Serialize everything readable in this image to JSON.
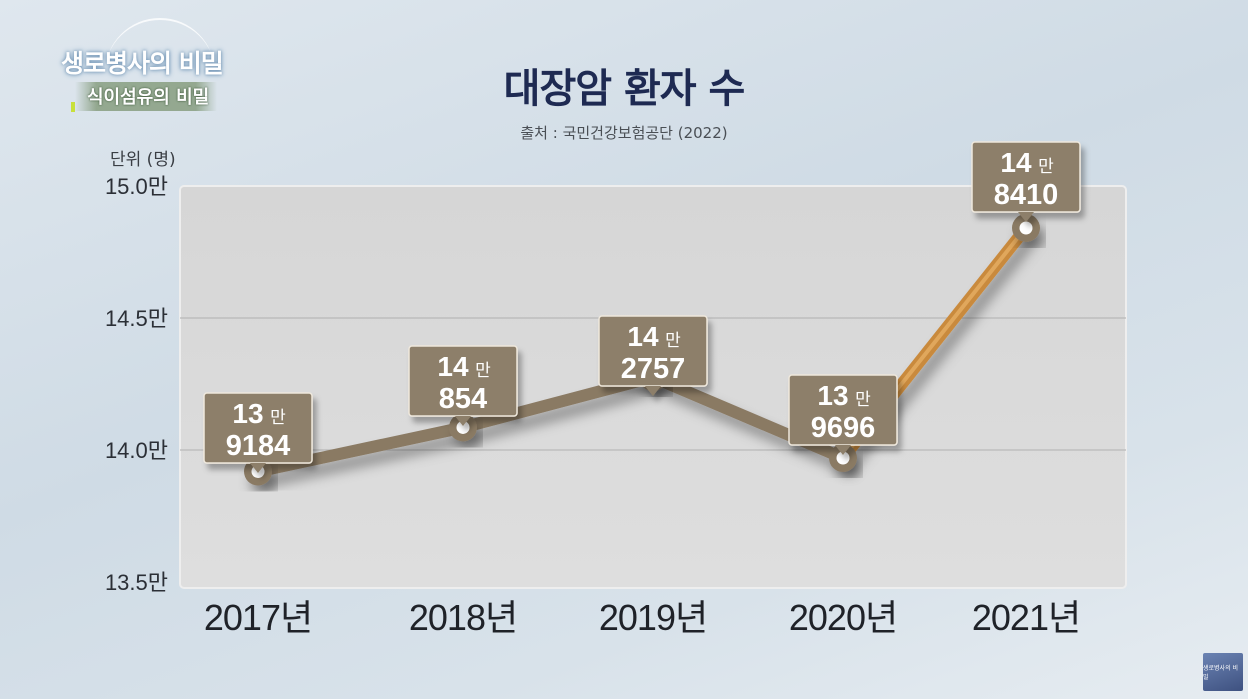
{
  "logo": {
    "title": "생로병사의 비밀",
    "subtitle": "식이섬유의 비밀"
  },
  "title": "대장암 환자 수",
  "source": "출처 : 국민건강보험공단 (2022)",
  "unit": "단위 (명)",
  "corner_logo": "생로병사의 비밀",
  "colors": {
    "line": "#8a7a64",
    "highlight_line": "#c98a3e",
    "label_box": "#8d7f6a",
    "plot_bg": "#d9d9d9",
    "title": "#1e2a52"
  },
  "chart_data": {
    "type": "line",
    "title": "대장암 환자 수",
    "ylabel": "단위 (명)",
    "categories": [
      "2017년",
      "2018년",
      "2019년",
      "2020년",
      "2021년"
    ],
    "values": [
      139184,
      140854,
      142757,
      139696,
      148410
    ],
    "point_labels": [
      {
        "top": "13만",
        "bottom": "9184"
      },
      {
        "top": "14만",
        "bottom": "854"
      },
      {
        "top": "14만",
        "bottom": "2757"
      },
      {
        "top": "13만",
        "bottom": "9696"
      },
      {
        "top": "14만",
        "bottom": "8410"
      }
    ],
    "y_ticks": [
      {
        "value": 150000,
        "label": "15.0만"
      },
      {
        "value": 145000,
        "label": "14.5만"
      },
      {
        "value": 140000,
        "label": "14.0만"
      },
      {
        "value": 135000,
        "label": "13.5만"
      }
    ],
    "ylim": [
      135000,
      150000
    ],
    "grid": true,
    "highlight_segment": "2020년-2021년"
  }
}
